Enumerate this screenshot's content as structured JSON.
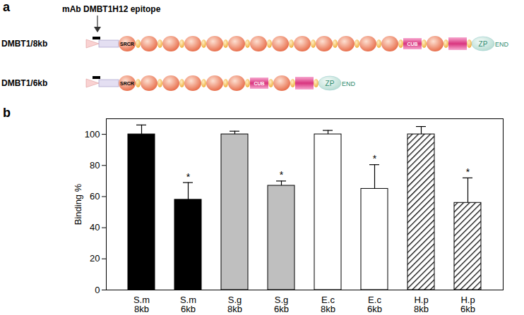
{
  "panel_a": {
    "panel_label": "a",
    "epitope_label": "mAb DMBT1H12 epitope",
    "rows": [
      {
        "name": "DMBT1/8kb",
        "srcr_repeats": 13
      },
      {
        "name": "DMBT1/6kb",
        "srcr_repeats": 6
      }
    ],
    "domain_labels": {
      "srcr": "SRCR",
      "cub": "CUB",
      "zp": "ZP",
      "end": "END"
    }
  },
  "chart_data": {
    "type": "bar",
    "panel_label": "b",
    "y_label": "Binding %",
    "categories": [
      "S.m\n8kb",
      "S.m\n6kb",
      "S.g\n8kb",
      "S.g\n6kb",
      "E.c\n8kb",
      "E.c\n6kb",
      "H.p\n8kb",
      "H.p\n6kb"
    ],
    "values": [
      100,
      58,
      100,
      67,
      100,
      65,
      100,
      56
    ],
    "errors": [
      6,
      11,
      2,
      3,
      2.5,
      15.5,
      5,
      16
    ],
    "significance": [
      null,
      "*",
      null,
      "*",
      null,
      "*",
      null,
      "*"
    ],
    "colors": [
      "#000000",
      "#000000",
      "#bfbfbf",
      "#bfbfbf",
      "#ffffff",
      "#ffffff",
      "hatched",
      "hatched"
    ],
    "ylim": [
      0,
      110
    ],
    "yticks": [
      0,
      20,
      40,
      60,
      80,
      100
    ],
    "grid": false
  }
}
